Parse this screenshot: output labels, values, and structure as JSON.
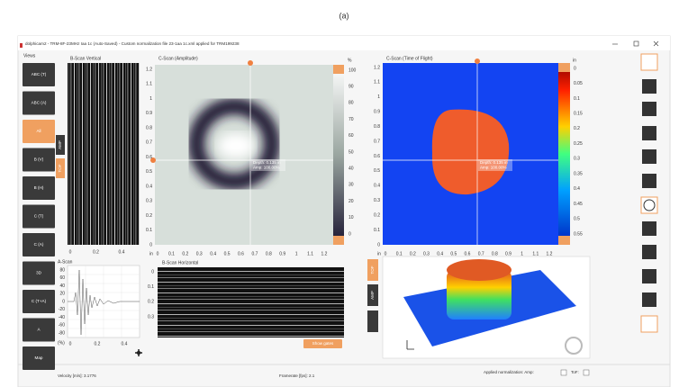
{
  "caption": "(a)",
  "window": {
    "title": "dolphicam2 - TRM-8F-23MHz Iaa 1c (Auto-Saved) - Custom normalization file 23-1aa 1c.xml applied for TRM199238"
  },
  "sidebar": {
    "title": "Views",
    "buttons": [
      "ABC (T)",
      "ABC (A)",
      "All",
      "B (V)",
      "B (H)",
      "C (T)",
      "C (A)",
      "3D",
      "C (T+A)",
      "A",
      "Map"
    ]
  },
  "bscan_vertical": {
    "title": "B-Scan Vertical",
    "x_ticks": [
      0,
      0.2,
      0.4
    ],
    "buttons": [
      "AMP",
      "TOF"
    ]
  },
  "cscan_amplitude": {
    "title": "C-Scan (Amplitude)",
    "x_unit": "in",
    "y_unit": "in",
    "y_ticks": [
      1.2,
      1.1,
      1,
      0.9,
      0.8,
      0.7,
      0.6,
      0.5,
      0.4,
      0.3,
      0.2,
      0.1,
      0
    ],
    "x_ticks": [
      0,
      0.1,
      0.2,
      0.3,
      0.4,
      0.5,
      0.6,
      0.7,
      0.8,
      0.9,
      1,
      1.1,
      1.2
    ],
    "scale_unit": "%",
    "scale_ticks": [
      100,
      90,
      80,
      70,
      60,
      50,
      40,
      30,
      20,
      10,
      0
    ],
    "cursor": [
      "Depth: 0.135 in",
      "Amp: 100.00%"
    ]
  },
  "cscan_tof": {
    "title": "C-Scan (Time of Flight)",
    "x_unit": "in",
    "y_unit": "in",
    "y_ticks": [
      1.2,
      1.1,
      1,
      0.9,
      0.8,
      0.7,
      0.6,
      0.5,
      0.4,
      0.3,
      0.2,
      0.1,
      0
    ],
    "x_ticks": [
      0,
      0.1,
      0.2,
      0.3,
      0.4,
      0.5,
      0.6,
      0.7,
      0.8,
      0.9,
      1,
      1.1,
      1.2
    ],
    "scale_unit": "in",
    "scale_ticks": [
      0,
      0.05,
      0.1,
      0.15,
      0.2,
      0.25,
      0.3,
      0.35,
      0.4,
      0.45,
      0.5,
      0.55
    ],
    "cursor": [
      "Depth: 0.135 in",
      "Amp: 100.00%"
    ]
  },
  "ascan": {
    "title": "A-Scan",
    "y_ticks": [
      80,
      60,
      40,
      20,
      0,
      -20,
      -40,
      -60,
      -80
    ],
    "y_unit": "(%)",
    "x_ticks": [
      0,
      0.2,
      0.4
    ]
  },
  "bscan_horizontal": {
    "title": "B-Scan Horizontal",
    "y_ticks": [
      0,
      0.1,
      0.2,
      0.3
    ],
    "button": "Show gates"
  },
  "view3d": {
    "buttons": [
      "TOF",
      "AMP"
    ]
  },
  "status": {
    "velocity": "Velocity [m/s]: 3.1776",
    "framerate": "Framerate [fps]: 2.1",
    "normalization": "Applied normalization: Amp:",
    "tof": "ToF:"
  }
}
